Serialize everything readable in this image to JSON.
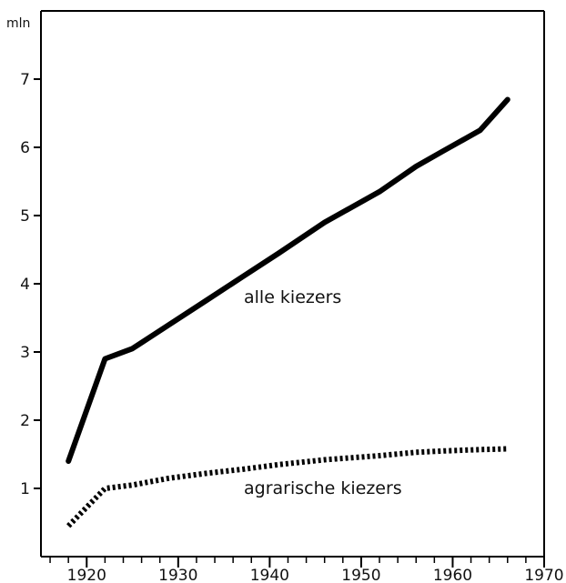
{
  "chart_data": {
    "type": "line",
    "xlabel": "",
    "ylabel": "mln",
    "xlim": [
      1915,
      1970
    ],
    "ylim": [
      0,
      8
    ],
    "x_ticks": [
      1920,
      1930,
      1940,
      1950,
      1960,
      1970
    ],
    "y_ticks": [
      1,
      2,
      3,
      4,
      5,
      6,
      7
    ],
    "grid": false,
    "series": [
      {
        "name": "alle kiezers",
        "style": "solid",
        "color": "#000000",
        "points": [
          [
            1918,
            1.4
          ],
          [
            1922,
            2.9
          ],
          [
            1925,
            3.05
          ],
          [
            1929,
            3.4
          ],
          [
            1933,
            3.75
          ],
          [
            1937,
            4.1
          ],
          [
            1941,
            4.45
          ],
          [
            1946,
            4.9
          ],
          [
            1952,
            5.35
          ],
          [
            1956,
            5.72
          ],
          [
            1959,
            5.95
          ],
          [
            1963,
            6.25
          ],
          [
            1966,
            6.7
          ]
        ]
      },
      {
        "name": "agrarische kiezers",
        "style": "dotted",
        "color": "#000000",
        "points": [
          [
            1918,
            0.45
          ],
          [
            1922,
            1.0
          ],
          [
            1925,
            1.05
          ],
          [
            1929,
            1.15
          ],
          [
            1933,
            1.22
          ],
          [
            1937,
            1.28
          ],
          [
            1941,
            1.35
          ],
          [
            1946,
            1.42
          ],
          [
            1952,
            1.48
          ],
          [
            1956,
            1.53
          ],
          [
            1959,
            1.55
          ],
          [
            1963,
            1.57
          ],
          [
            1966,
            1.58
          ]
        ]
      }
    ]
  }
}
